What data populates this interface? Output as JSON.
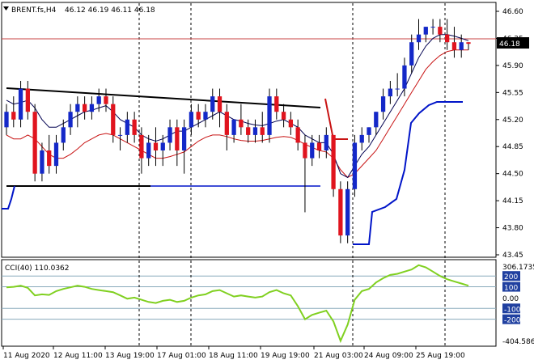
{
  "header": {
    "symbol": "BRENT.fs,H4",
    "ohlc": "46.12 46.19 46.11 46.18"
  },
  "indicator": {
    "label": "CCI(40) 110.0362",
    "axis_ticks": [
      "306.1735",
      "200",
      "100",
      "0.00",
      "-100",
      "-200",
      "-404.586"
    ]
  },
  "price": {
    "current": "46.18"
  },
  "colors": {
    "bull": "#1428c8",
    "bear": "#e0141e",
    "wick": "#000000",
    "ma_fast": "#000050",
    "ma_slow": "#c81414",
    "trend_line": "#000000",
    "stop_line": "#0014c8",
    "cci": "#80d020",
    "price_line": "#c84646"
  },
  "chart_data": {
    "type": "candlestick",
    "y_ticks": [
      "46.60",
      "46.25",
      "45.90",
      "45.55",
      "45.20",
      "44.85",
      "44.50",
      "44.15",
      "43.80",
      "43.45"
    ],
    "x_ticks": [
      "11 Aug 2020",
      "12 Aug 11:00",
      "13 Aug 19:00",
      "17 Aug 01:00",
      "18 Aug 11:00",
      "19 Aug 19:00",
      "21 Aug 03:00",
      "24 Aug 09:00",
      "25 Aug 19:00"
    ],
    "ylim": [
      43.45,
      46.6
    ],
    "candles": [
      [
        45.1,
        45.4,
        45.0,
        45.3
      ],
      [
        45.3,
        45.5,
        45.1,
        45.2
      ],
      [
        45.2,
        45.7,
        45.1,
        45.6
      ],
      [
        45.6,
        45.7,
        45.2,
        45.3
      ],
      [
        45.3,
        45.4,
        44.4,
        44.5
      ],
      [
        44.5,
        44.9,
        44.4,
        44.8
      ],
      [
        44.8,
        45.0,
        44.5,
        44.6
      ],
      [
        44.6,
        45.0,
        44.5,
        44.9
      ],
      [
        44.9,
        45.2,
        44.8,
        45.1
      ],
      [
        45.1,
        45.4,
        45.0,
        45.3
      ],
      [
        45.3,
        45.5,
        45.1,
        45.4
      ],
      [
        45.4,
        45.5,
        45.2,
        45.3
      ],
      [
        45.3,
        45.5,
        45.2,
        45.4
      ],
      [
        45.4,
        45.6,
        45.3,
        45.5
      ],
      [
        45.5,
        45.6,
        45.3,
        45.4
      ],
      [
        45.4,
        45.5,
        44.9,
        45.0
      ],
      [
        45.0,
        45.1,
        44.8,
        45.0
      ],
      [
        45.0,
        45.3,
        44.9,
        45.2
      ],
      [
        45.2,
        45.3,
        44.9,
        45.0
      ],
      [
        45.0,
        45.1,
        44.5,
        44.7
      ],
      [
        44.7,
        45.0,
        44.6,
        44.9
      ],
      [
        44.9,
        45.1,
        44.6,
        44.8
      ],
      [
        44.8,
        45.0,
        44.6,
        44.9
      ],
      [
        44.9,
        45.2,
        44.8,
        45.1
      ],
      [
        45.1,
        45.2,
        44.6,
        44.8
      ],
      [
        44.8,
        45.2,
        44.5,
        45.1
      ],
      [
        45.1,
        45.4,
        45.0,
        45.3
      ],
      [
        45.3,
        45.4,
        45.1,
        45.2
      ],
      [
        45.2,
        45.4,
        45.1,
        45.3
      ],
      [
        45.3,
        45.6,
        45.2,
        45.5
      ],
      [
        45.5,
        45.6,
        45.1,
        45.3
      ],
      [
        45.3,
        45.4,
        44.8,
        45.0
      ],
      [
        45.0,
        45.2,
        44.9,
        45.2
      ],
      [
        45.2,
        45.4,
        45.0,
        45.1
      ],
      [
        45.1,
        45.2,
        44.9,
        45.0
      ],
      [
        45.0,
        45.2,
        44.9,
        45.1
      ],
      [
        45.1,
        45.3,
        44.9,
        45.0
      ],
      [
        45.0,
        45.6,
        44.9,
        45.5
      ],
      [
        45.5,
        45.6,
        45.2,
        45.3
      ],
      [
        45.3,
        45.4,
        45.1,
        45.2
      ],
      [
        45.2,
        45.3,
        45.0,
        45.1
      ],
      [
        45.1,
        45.2,
        44.8,
        44.9
      ],
      [
        44.9,
        45.0,
        44.0,
        44.7
      ],
      [
        44.7,
        45.0,
        44.6,
        44.9
      ],
      [
        44.9,
        45.0,
        44.7,
        44.8
      ],
      [
        44.8,
        45.1,
        44.7,
        45.0
      ],
      [
        45.0,
        45.0,
        44.2,
        44.3
      ],
      [
        44.3,
        44.4,
        43.6,
        43.7
      ],
      [
        43.7,
        44.4,
        43.6,
        44.3
      ],
      [
        44.3,
        45.0,
        44.2,
        44.9
      ],
      [
        44.9,
        45.1,
        44.8,
        45.0
      ],
      [
        45.0,
        45.1,
        44.9,
        45.1
      ],
      [
        45.1,
        45.3,
        45.0,
        45.3
      ],
      [
        45.3,
        45.6,
        45.2,
        45.5
      ],
      [
        45.5,
        45.7,
        45.4,
        45.6
      ],
      [
        45.6,
        45.8,
        45.5,
        45.6
      ],
      [
        45.6,
        46.0,
        45.5,
        45.9
      ],
      [
        45.9,
        46.3,
        45.8,
        46.2
      ],
      [
        46.2,
        46.5,
        46.1,
        46.3
      ],
      [
        46.3,
        46.4,
        46.2,
        46.4
      ],
      [
        46.4,
        46.5,
        46.3,
        46.4
      ],
      [
        46.4,
        46.5,
        46.2,
        46.3
      ],
      [
        46.3,
        46.5,
        46.1,
        46.2
      ],
      [
        46.2,
        46.4,
        46.0,
        46.1
      ],
      [
        46.1,
        46.3,
        46.0,
        46.2
      ],
      [
        46.2,
        46.2,
        46.1,
        46.18
      ]
    ],
    "ma_fast": [
      45.45,
      45.4,
      45.42,
      45.45,
      45.35,
      45.2,
      45.1,
      45.1,
      45.15,
      45.2,
      45.25,
      45.3,
      45.32,
      45.35,
      45.38,
      45.3,
      45.2,
      45.15,
      45.1,
      45.0,
      44.95,
      44.92,
      44.95,
      45.0,
      45.05,
      45.05,
      45.1,
      45.15,
      45.2,
      45.25,
      45.3,
      45.25,
      45.2,
      45.18,
      45.15,
      45.13,
      45.12,
      45.15,
      45.18,
      45.2,
      45.15,
      45.1,
      45.0,
      44.95,
      44.9,
      44.9,
      44.75,
      44.5,
      44.45,
      44.6,
      44.75,
      44.85,
      45.0,
      45.15,
      45.3,
      45.45,
      45.6,
      45.8,
      46.0,
      46.15,
      46.25,
      46.3,
      46.3,
      46.28,
      46.25,
      46.22
    ],
    "ma_slow": [
      45.0,
      44.95,
      44.95,
      45.0,
      44.95,
      44.85,
      44.75,
      44.7,
      44.7,
      44.75,
      44.82,
      44.9,
      44.95,
      45.0,
      45.02,
      45.0,
      44.95,
      44.9,
      44.85,
      44.8,
      44.75,
      44.7,
      44.7,
      44.72,
      44.75,
      44.78,
      44.85,
      44.92,
      44.97,
      45.0,
      45.0,
      44.98,
      44.95,
      44.93,
      44.92,
      44.92,
      44.93,
      44.95,
      44.97,
      44.98,
      44.97,
      44.93,
      44.88,
      44.84,
      44.8,
      44.78,
      44.7,
      44.55,
      44.45,
      44.5,
      44.6,
      44.7,
      44.8,
      44.95,
      45.1,
      45.25,
      45.4,
      45.55,
      45.7,
      45.85,
      45.95,
      46.03,
      46.08,
      46.1,
      46.1,
      46.1
    ],
    "trend_line": {
      "from": [
        0,
        45.65
      ],
      "to": [
        59,
        45.4
      ]
    },
    "stop_red": [
      [
        59,
        45.5
      ],
      [
        61,
        44.9
      ],
      [
        62,
        44.9
      ],
      [
        63,
        44.9
      ],
      [
        64,
        44.85
      ]
    ],
    "horizontal_support": {
      "from": [
        0,
        44.35
      ],
      "to": [
        28,
        44.35
      ],
      "value": 44.35
    },
    "stop_blue": [
      [
        0,
        44.05
      ],
      [
        1,
        44.2
      ],
      [
        2,
        44.35
      ],
      [
        3,
        44.35
      ],
      [
        4,
        44.35
      ],
      [
        5,
        44.35
      ],
      [
        6,
        44.35
      ],
      [
        7,
        44.35
      ],
      [
        8,
        44.35
      ],
      [
        9,
        44.35
      ],
      [
        10,
        44.35
      ],
      [
        11,
        44.35
      ],
      [
        12,
        44.35
      ],
      [
        13,
        44.35
      ],
      [
        14,
        44.35
      ],
      [
        15,
        44.35
      ],
      [
        16,
        44.35
      ],
      [
        17,
        44.35
      ],
      [
        18,
        44.35
      ],
      [
        19,
        44.35
      ],
      [
        20,
        44.35
      ],
      [
        21,
        44.35
      ],
      [
        22,
        44.35
      ],
      [
        23,
        44.35
      ],
      [
        24,
        44.35
      ],
      [
        25,
        44.35
      ],
      [
        26,
        44.35
      ],
      [
        27,
        44.35
      ],
      [
        28,
        44.35
      ],
      [
        29,
        44.35
      ],
      [
        30,
        44.35
      ],
      [
        31,
        44.35
      ],
      [
        32,
        44.35
      ],
      [
        33,
        44.35
      ],
      [
        34,
        44.35
      ],
      [
        35,
        44.35
      ],
      [
        36,
        44.35
      ],
      [
        37,
        44.35
      ],
      [
        38,
        44.35
      ],
      [
        39,
        44.35
      ],
      [
        40,
        44.35
      ],
      [
        41,
        44.35
      ],
      [
        42,
        44.35
      ],
      [
        43,
        44.35
      ],
      [
        44,
        44.35
      ],
      [
        45,
        44.35
      ],
      [
        46,
        44.35
      ],
      [
        47,
        44.35
      ],
      [
        48,
        44.35
      ],
      [
        49,
        44.35
      ],
      [
        50,
        44.35
      ],
      [
        51,
        44.35
      ],
      [
        52,
        44.35
      ],
      [
        53,
        44.35
      ],
      [
        54,
        44.35
      ],
      [
        55,
        44.35
      ],
      [
        56,
        44.35
      ],
      [
        57,
        44.35
      ],
      [
        58,
        44.35
      ],
      [
        59,
        44.35
      ]
    ],
    "stop_blue_after": [
      [
        65,
        43.6
      ],
      [
        66,
        43.6
      ],
      [
        67,
        43.6
      ],
      [
        68,
        43.6
      ],
      [
        69,
        44.05
      ],
      [
        70,
        44.1
      ],
      [
        71,
        44.15
      ],
      [
        72,
        44.2
      ],
      [
        73,
        44.3
      ],
      [
        74,
        44.6
      ],
      [
        75,
        45.0
      ],
      [
        76,
        45.2
      ],
      [
        77,
        45.3
      ],
      [
        78,
        45.4
      ],
      [
        79,
        45.45
      ],
      [
        80,
        45.45
      ],
      [
        81,
        45.45
      ],
      [
        82,
        45.45
      ],
      [
        83,
        45.45
      ]
    ],
    "cci_ylim": [
      -404.586,
      306.1735
    ],
    "cci": [
      95,
      100,
      110,
      90,
      20,
      30,
      25,
      60,
      80,
      95,
      110,
      100,
      80,
      70,
      60,
      50,
      20,
      -10,
      0,
      -20,
      -40,
      -50,
      -30,
      -20,
      -40,
      -30,
      0,
      20,
      30,
      60,
      70,
      40,
      10,
      20,
      10,
      0,
      10,
      50,
      70,
      40,
      20,
      -80,
      -200,
      -160,
      -140,
      -120,
      -220,
      -400,
      -250,
      -20,
      60,
      80,
      140,
      180,
      210,
      220,
      240,
      260,
      300,
      280,
      240,
      200,
      170,
      150,
      130,
      110
    ],
    "vertical_markers": [
      "13 Aug 19:00",
      "17 Aug 01:00",
      "21 Aug 03:00",
      "25 Aug 19:00"
    ]
  }
}
